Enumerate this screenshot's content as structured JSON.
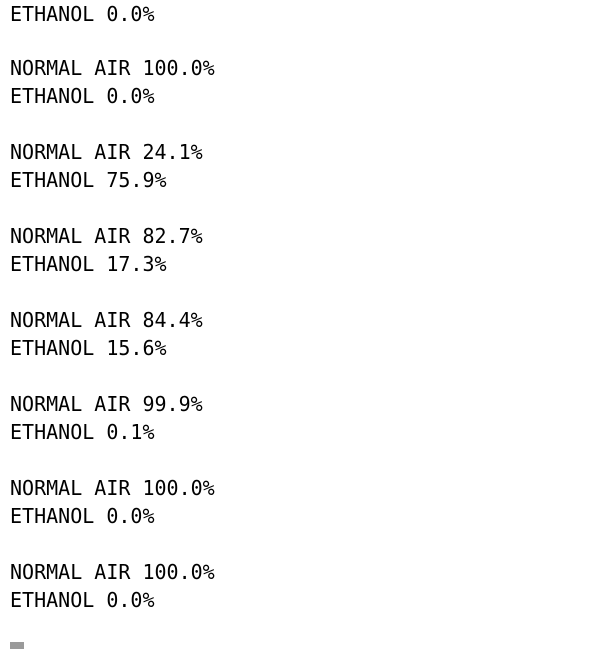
{
  "terminal": {
    "lines": [
      "ETHANOL 0.0%",
      "",
      "NORMAL AIR 100.0%",
      "ETHANOL 0.0%",
      "",
      "NORMAL AIR 24.1%",
      "ETHANOL 75.9%",
      "",
      "NORMAL AIR 82.7%",
      "ETHANOL 17.3%",
      "",
      "NORMAL AIR 84.4%",
      "ETHANOL 15.6%",
      "",
      "NORMAL AIR 99.9%",
      "ETHANOL 0.1%",
      "",
      "NORMAL AIR 100.0%",
      "ETHANOL 0.0%",
      "",
      "NORMAL AIR 100.0%",
      "ETHANOL 0.0%"
    ]
  },
  "colors": {
    "background": "#ffffff",
    "text": "#000000",
    "cursor": "#9a9a9a"
  }
}
